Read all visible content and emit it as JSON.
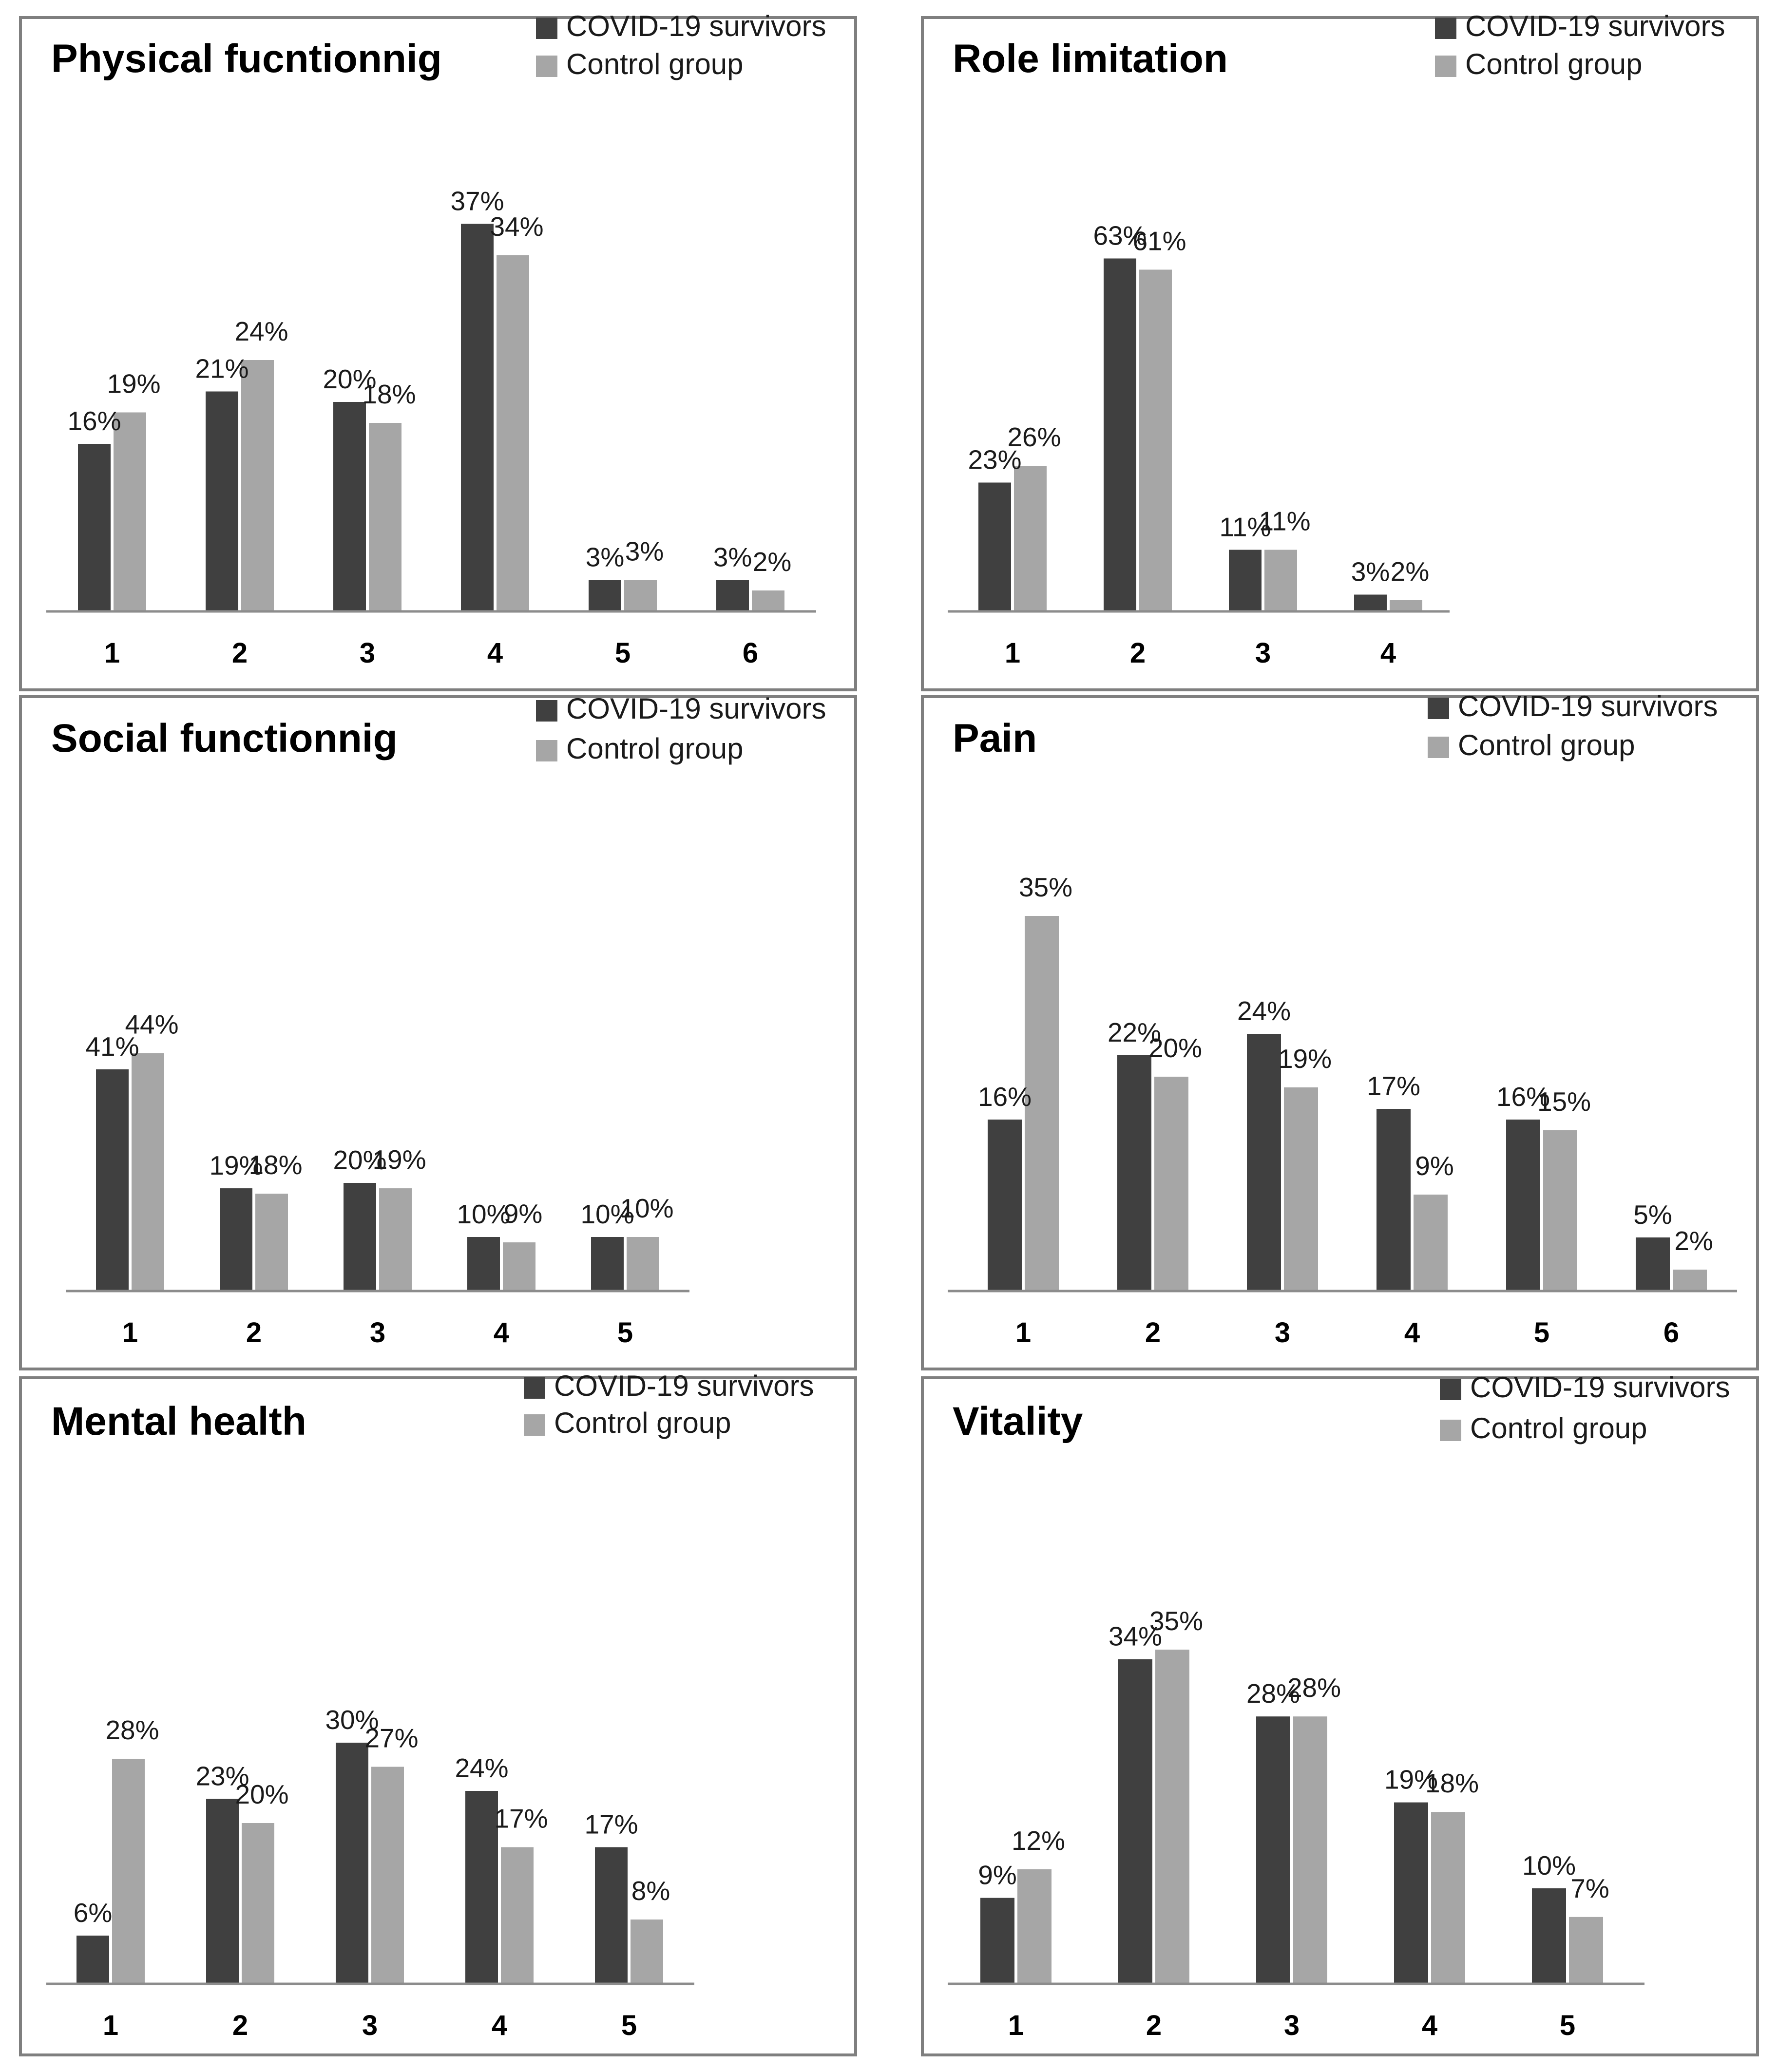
{
  "legend": {
    "series_a": "COVID-19 survivors",
    "series_b": "Control group"
  },
  "colors": {
    "series_a": "#404040",
    "series_b": "#a6a6a6"
  },
  "chart_data": [
    {
      "type": "bar",
      "title": "Physical fucntionnig",
      "categories": [
        "1",
        "2",
        "3",
        "4",
        "5",
        "6"
      ],
      "series": [
        {
          "name": "COVID-19 survivors",
          "values": [
            16,
            21,
            20,
            37,
            3,
            3
          ]
        },
        {
          "name": "Control group",
          "values": [
            19,
            24,
            18,
            34,
            3,
            2
          ]
        }
      ],
      "labels_a": [
        "16%",
        "21%",
        "20%",
        "37%",
        "3%",
        "3%"
      ],
      "labels_b": [
        "19%",
        "24%",
        "18%",
        "34%",
        "3%",
        "2%"
      ]
    },
    {
      "type": "bar",
      "title": "Role limitation",
      "categories": [
        "1",
        "2",
        "3",
        "4"
      ],
      "series": [
        {
          "name": "COVID-19 survivors",
          "values": [
            23,
            63,
            11,
            3
          ]
        },
        {
          "name": "Control group",
          "values": [
            26,
            61,
            11,
            2
          ]
        }
      ],
      "labels_a": [
        "23%",
        "63%",
        "11%",
        "3%"
      ],
      "labels_b": [
        "26%",
        "61%",
        "11%",
        "2%"
      ]
    },
    {
      "type": "bar",
      "title": "Social functionnig",
      "categories": [
        "1",
        "2",
        "3",
        "4",
        "5"
      ],
      "series": [
        {
          "name": "COVID-19 survivors",
          "values": [
            41,
            19,
            20,
            10,
            10
          ]
        },
        {
          "name": "Control group",
          "values": [
            44,
            18,
            19,
            9,
            10
          ]
        }
      ],
      "labels_a": [
        "41%",
        "19%",
        "20%",
        "10%",
        "10%"
      ],
      "labels_b": [
        "44%",
        "18%",
        "19%",
        "9%",
        "10%"
      ]
    },
    {
      "type": "bar",
      "title": "Pain",
      "categories": [
        "1",
        "2",
        "3",
        "4",
        "5",
        "6"
      ],
      "series": [
        {
          "name": "COVID-19 survivors",
          "values": [
            16,
            22,
            24,
            17,
            16,
            5
          ]
        },
        {
          "name": "Control group",
          "values": [
            35,
            20,
            19,
            9,
            15,
            2
          ]
        }
      ],
      "labels_a": [
        "16%",
        "22%",
        "24%",
        "17%",
        "16%",
        "5%"
      ],
      "labels_b": [
        "35%",
        "20%",
        "19%",
        "9%",
        "15%",
        "2%"
      ]
    },
    {
      "type": "bar",
      "title": "Mental health",
      "categories": [
        "1",
        "2",
        "3",
        "4",
        "5"
      ],
      "series": [
        {
          "name": "COVID-19 survivors",
          "values": [
            6,
            23,
            30,
            24,
            17
          ]
        },
        {
          "name": "Control group",
          "values": [
            28,
            20,
            27,
            17,
            8
          ]
        }
      ],
      "labels_a": [
        "6%",
        "23%",
        "30%",
        "24%",
        "17%"
      ],
      "labels_b": [
        "28%",
        "20%",
        "27%",
        "17%",
        "8%"
      ]
    },
    {
      "type": "bar",
      "title": "Vitality",
      "categories": [
        "1",
        "2",
        "3",
        "4",
        "5"
      ],
      "series": [
        {
          "name": "COVID-19 survivors",
          "values": [
            9,
            34,
            28,
            19,
            10
          ]
        },
        {
          "name": "Control group",
          "values": [
            12,
            35,
            28,
            18,
            7
          ]
        }
      ],
      "labels_a": [
        "9%",
        "34%",
        "28%",
        "19%",
        "10%"
      ],
      "labels_b": [
        "12%",
        "35%",
        "28%",
        "18%",
        "7%"
      ]
    }
  ]
}
